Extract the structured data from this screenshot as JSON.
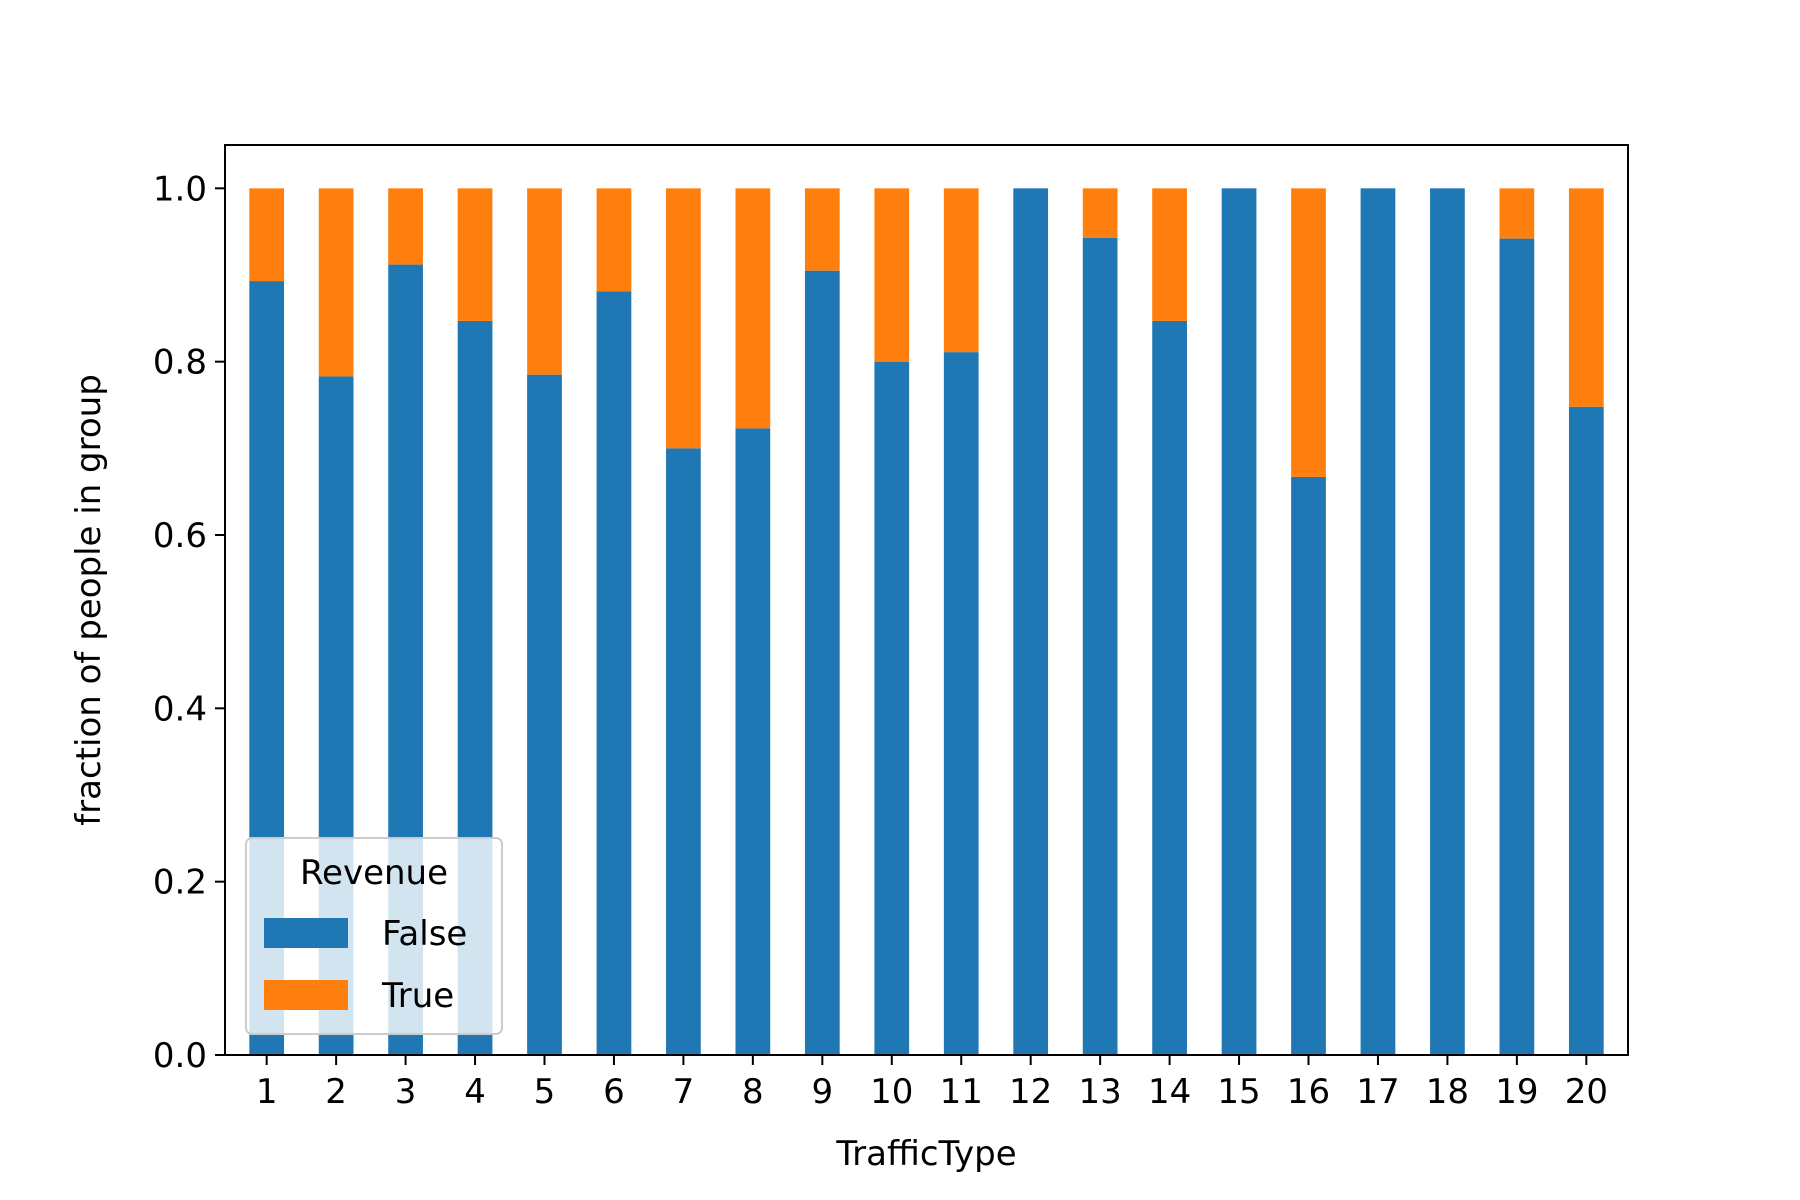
{
  "chart_data": {
    "type": "bar",
    "stacked": true,
    "xlabel": "TrafficType",
    "ylabel": "fraction of people in group",
    "ylim": [
      0,
      1.05
    ],
    "yticks": [
      "0.0",
      "0.2",
      "0.4",
      "0.6",
      "0.8",
      "1.0"
    ],
    "categories": [
      "1",
      "2",
      "3",
      "4",
      "5",
      "6",
      "7",
      "8",
      "9",
      "10",
      "11",
      "12",
      "13",
      "14",
      "15",
      "16",
      "17",
      "18",
      "19",
      "20"
    ],
    "series": [
      {
        "name": "False",
        "color": "#1f77b4",
        "values": [
          0.893,
          0.783,
          0.912,
          0.847,
          0.785,
          0.881,
          0.7,
          0.723,
          0.905,
          0.8,
          0.811,
          1.0,
          0.943,
          0.847,
          1.0,
          0.667,
          1.0,
          1.0,
          0.942,
          0.748
        ]
      },
      {
        "name": "True",
        "color": "#ff7f0e",
        "values": [
          0.107,
          0.217,
          0.088,
          0.153,
          0.215,
          0.119,
          0.3,
          0.277,
          0.095,
          0.2,
          0.189,
          0.0,
          0.057,
          0.153,
          0.0,
          0.333,
          0.0,
          0.0,
          0.058,
          0.252
        ]
      }
    ],
    "legend": {
      "title": "Revenue",
      "position": "lower-left"
    },
    "grid": false
  }
}
